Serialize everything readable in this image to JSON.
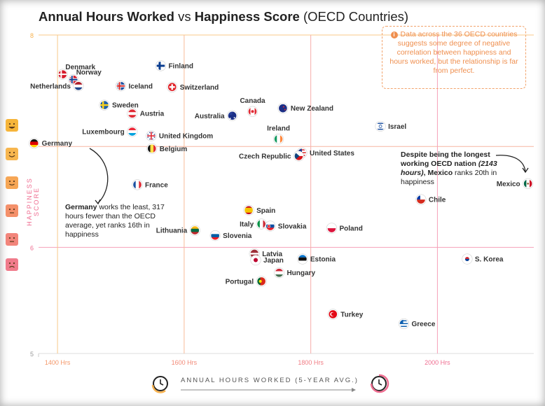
{
  "title": {
    "bold1": "Annual Hours Worked",
    "mid": " vs ",
    "bold2": "Happiness Score",
    "light": " (OECD Countries)"
  },
  "y_axis_label": "HAPPINESS SCORE",
  "x_axis_label": "ANNUAL HOURS WORKED (5-YEAR AVG.)",
  "callout": {
    "icon": "i",
    "text": "Data across the 36 OECD countries suggests some degree of negative correlation between happiness and hours worked, but the relationship is far from perfect."
  },
  "notes": {
    "germany": {
      "bold": "Germany",
      "text": " works the least, 317 hours fewer than the OECD average, yet ranks 16th in happiness"
    },
    "mexico": {
      "line1": "Despite being the longest working OECD nation",
      "paren": "(2143 hours)",
      "mid": ", ",
      "bold": "Mexico",
      "rest": " ranks 20th in happiness"
    }
  },
  "faces": [
    {
      "name": "very-happy-face-icon",
      "color": "#f6b53a"
    },
    {
      "name": "happy-face-icon",
      "color": "#f7b64f"
    },
    {
      "name": "content-face-icon",
      "color": "#f6a655"
    },
    {
      "name": "neutral-face-icon",
      "color": "#f4906a"
    },
    {
      "name": "unhappy-face-icon",
      "color": "#f2857b"
    },
    {
      "name": "sad-face-icon",
      "color": "#f07b8b"
    }
  ],
  "colors": {
    "orange": "#f7b24f",
    "pink": "#ef6e91",
    "grid_orange": "#f8c98a",
    "grid_pink": "#f5a0b8"
  },
  "chart_data": {
    "type": "scatter",
    "title": "Annual Hours Worked vs Happiness Score (OECD Countries)",
    "xlabel": "ANNUAL HOURS WORKED (5-YEAR AVG.)",
    "ylabel": "HAPPINESS SCORE",
    "xlim": [
      1370,
      2150
    ],
    "ylim": [
      5,
      8
    ],
    "x_ticks": [
      {
        "v": 1400,
        "label": "1400 Hrs"
      },
      {
        "v": 1600,
        "label": "1600 Hrs"
      },
      {
        "v": 1800,
        "label": "1800 Hrs"
      },
      {
        "v": 2000,
        "label": "2000 Hrs"
      }
    ],
    "y_ticks": [
      {
        "v": 8,
        "label": "8"
      },
      {
        "v": 6,
        "label": "6"
      },
      {
        "v": 5,
        "label": "5"
      }
    ],
    "points": [
      {
        "country": "Finland",
        "x": 1563,
        "y": 7.71,
        "flag": "finland",
        "side": "r"
      },
      {
        "country": "Denmark",
        "x": 1408,
        "y": 7.63,
        "flag": "denmark",
        "side": "rt"
      },
      {
        "country": "Norway",
        "x": 1425,
        "y": 7.58,
        "flag": "norway",
        "side": "rt"
      },
      {
        "country": "Netherlands",
        "x": 1433,
        "y": 7.52,
        "flag": "netherlands",
        "side": "l"
      },
      {
        "country": "Iceland",
        "x": 1500,
        "y": 7.52,
        "flag": "iceland",
        "side": "r"
      },
      {
        "country": "Switzerland",
        "x": 1581,
        "y": 7.51,
        "flag": "switzerland",
        "side": "r"
      },
      {
        "country": "Sweden",
        "x": 1474,
        "y": 7.34,
        "flag": "sweden",
        "side": "r"
      },
      {
        "country": "Austria",
        "x": 1518,
        "y": 7.26,
        "flag": "austria",
        "side": "r"
      },
      {
        "country": "Canada",
        "x": 1708,
        "y": 7.28,
        "flag": "canada",
        "side": "t"
      },
      {
        "country": "Australia",
        "x": 1676,
        "y": 7.24,
        "flag": "australia",
        "side": "l"
      },
      {
        "country": "New Zealand",
        "x": 1756,
        "y": 7.31,
        "flag": "newzealand",
        "side": "r"
      },
      {
        "country": "Luxembourg",
        "x": 1518,
        "y": 7.09,
        "flag": "luxembourg",
        "side": "l"
      },
      {
        "country": "United Kingdom",
        "x": 1548,
        "y": 7.05,
        "flag": "uk",
        "side": "r"
      },
      {
        "country": "Israel",
        "x": 1910,
        "y": 7.14,
        "flag": "israel",
        "side": "r"
      },
      {
        "country": "Ireland",
        "x": 1749,
        "y": 7.02,
        "flag": "ireland",
        "side": "t"
      },
      {
        "country": "Germany",
        "x": 1363,
        "y": 6.98,
        "flag": "germany",
        "side": "r"
      },
      {
        "country": "Belgium",
        "x": 1549,
        "y": 6.93,
        "flag": "belgium",
        "side": "r"
      },
      {
        "country": "United States",
        "x": 1786,
        "y": 6.89,
        "flag": "us",
        "side": "r"
      },
      {
        "country": "Czech Republic",
        "x": 1781,
        "y": 6.86,
        "flag": "czech",
        "side": "l"
      },
      {
        "country": "Mexico",
        "x": 2143,
        "y": 6.6,
        "flag": "mexico",
        "side": "l"
      },
      {
        "country": "France",
        "x": 1526,
        "y": 6.59,
        "flag": "france",
        "side": "r"
      },
      {
        "country": "Chile",
        "x": 1974,
        "y": 6.45,
        "flag": "chile",
        "side": "r"
      },
      {
        "country": "Spain",
        "x": 1702,
        "y": 6.35,
        "flag": "spain",
        "side": "r"
      },
      {
        "country": "Italy",
        "x": 1722,
        "y": 6.22,
        "flag": "italy",
        "side": "l"
      },
      {
        "country": "Slovakia",
        "x": 1736,
        "y": 6.2,
        "flag": "slovakia",
        "side": "r"
      },
      {
        "country": "Poland",
        "x": 1833,
        "y": 6.18,
        "flag": "poland",
        "side": "r"
      },
      {
        "country": "Lithuania",
        "x": 1617,
        "y": 6.16,
        "flag": "lithuania",
        "side": "l"
      },
      {
        "country": "Slovenia",
        "x": 1649,
        "y": 6.11,
        "flag": "slovenia",
        "side": "r"
      },
      {
        "country": "Latvia",
        "x": 1711,
        "y": 5.94,
        "flag": "latvia",
        "side": "r"
      },
      {
        "country": "Japan",
        "x": 1713,
        "y": 5.88,
        "flag": "japan",
        "side": "r"
      },
      {
        "country": "Estonia",
        "x": 1787,
        "y": 5.89,
        "flag": "estonia",
        "side": "r"
      },
      {
        "country": "S. Korea",
        "x": 2047,
        "y": 5.89,
        "flag": "korea",
        "side": "r"
      },
      {
        "country": "Hungary",
        "x": 1750,
        "y": 5.76,
        "flag": "hungary",
        "side": "r"
      },
      {
        "country": "Portugal",
        "x": 1722,
        "y": 5.68,
        "flag": "portugal",
        "side": "l"
      },
      {
        "country": "Turkey",
        "x": 1835,
        "y": 5.37,
        "flag": "turkey",
        "side": "r"
      },
      {
        "country": "Greece",
        "x": 1947,
        "y": 5.28,
        "flag": "greece",
        "side": "r"
      }
    ]
  }
}
